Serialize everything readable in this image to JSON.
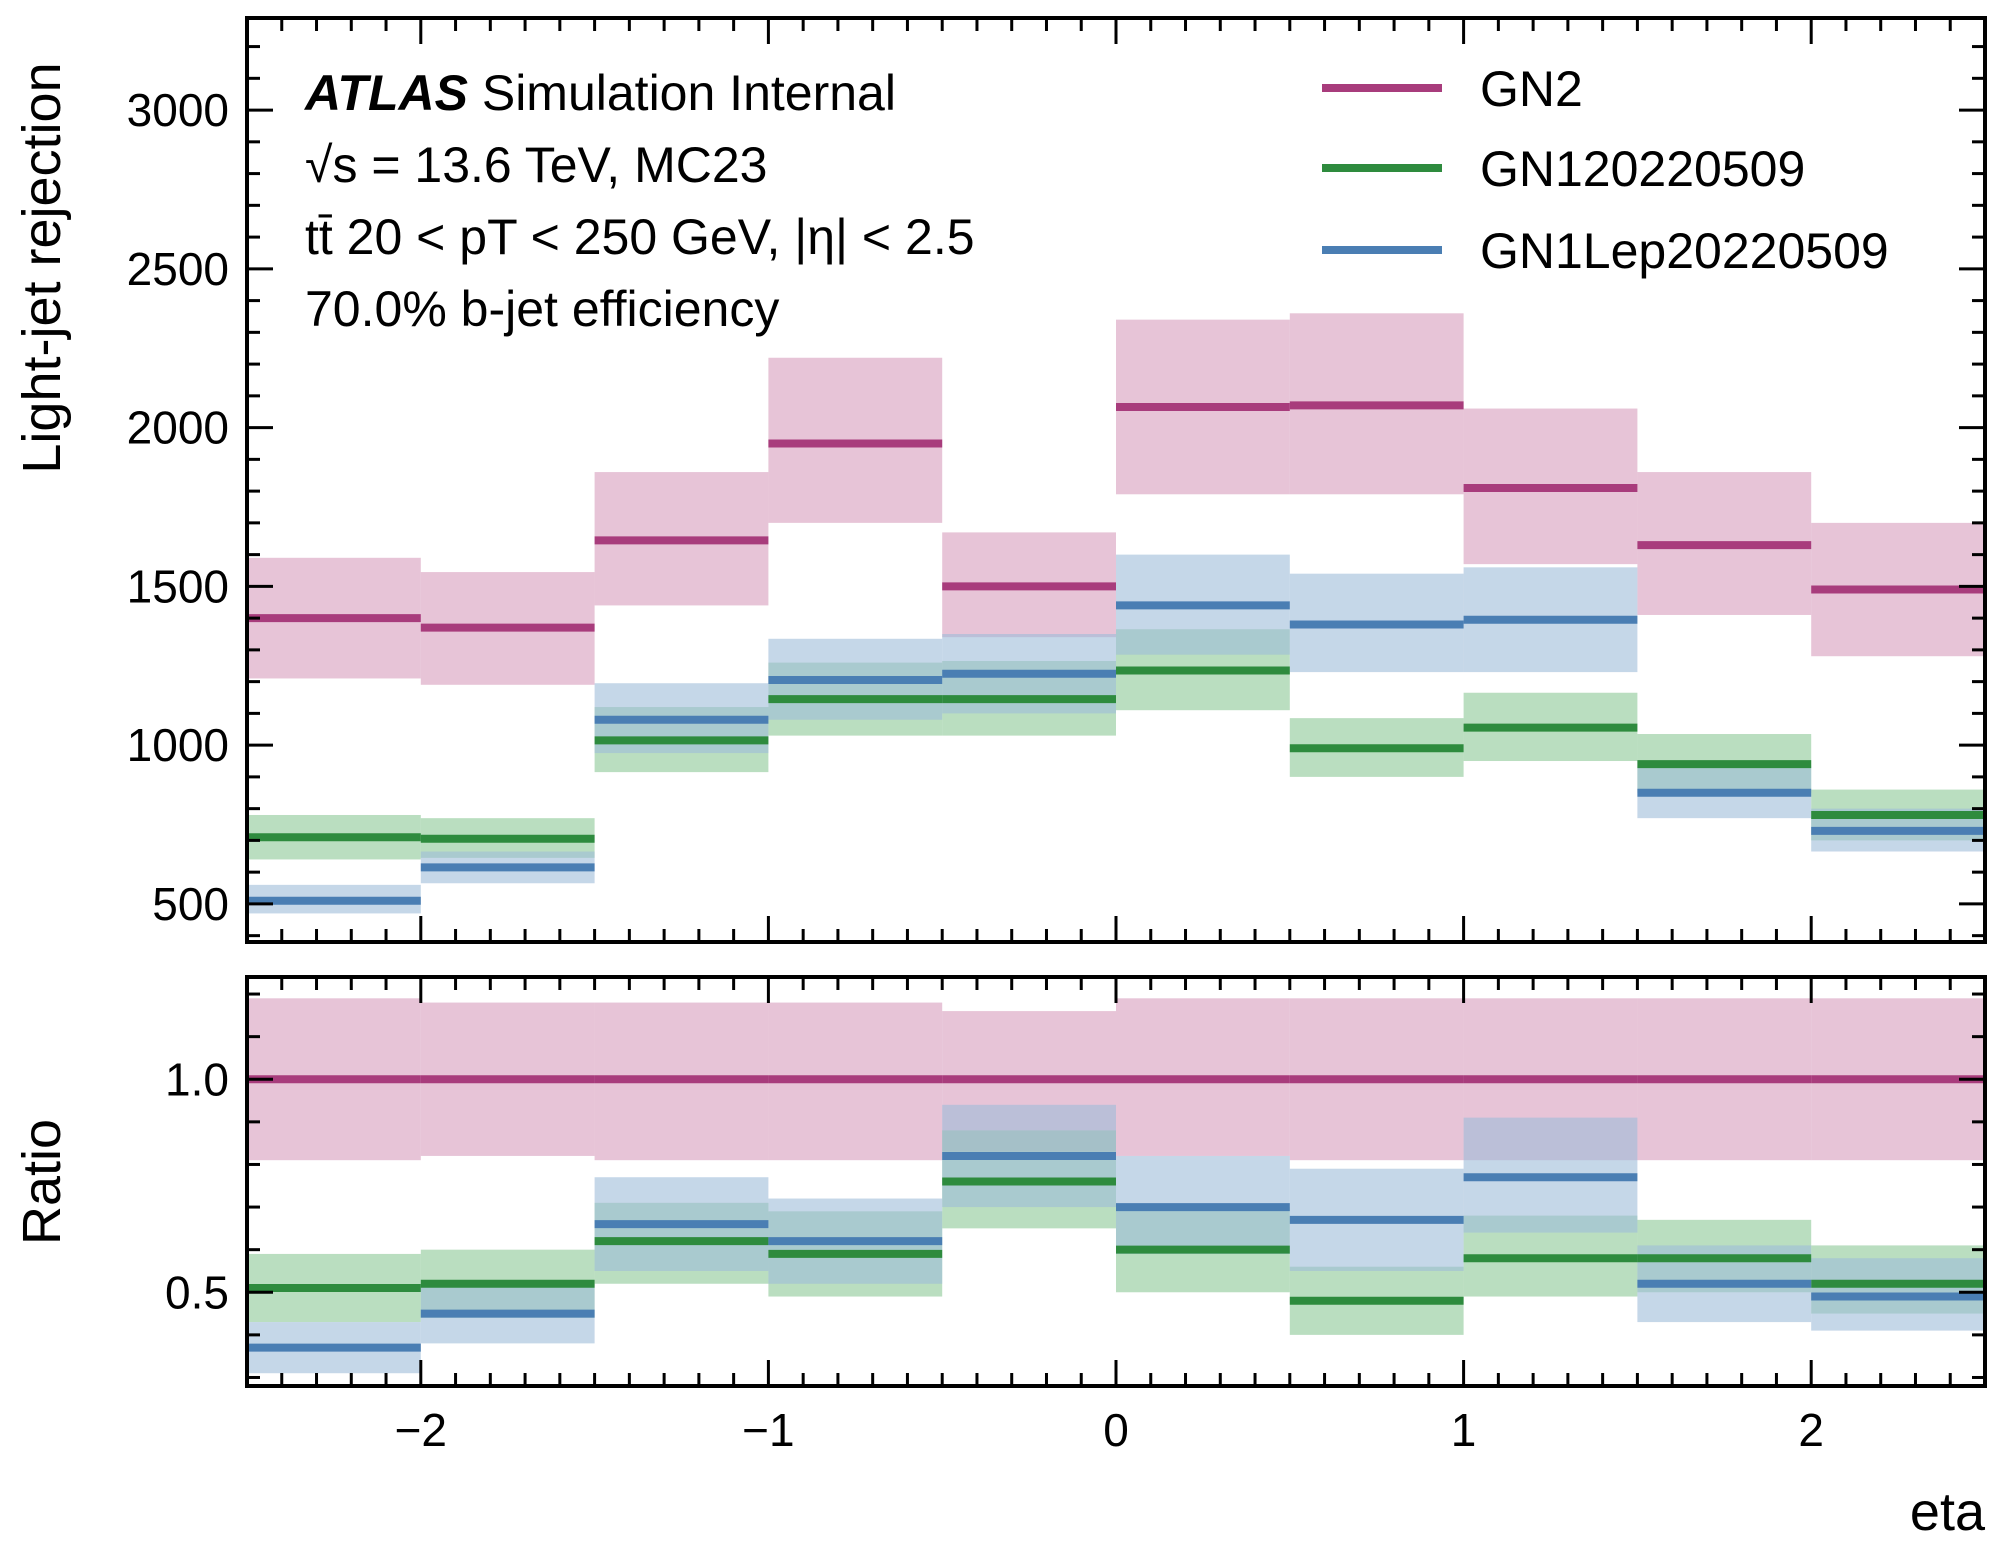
{
  "chart_data": [
    {
      "type": "step",
      "panel": "main",
      "ylabel": "Light-jet rejection",
      "xlim": [
        -2.5,
        2.5
      ],
      "ylim": [
        380,
        3290
      ],
      "yticks": [
        500,
        1000,
        1500,
        2000,
        2500,
        3000
      ],
      "bin_edges": [
        -2.5,
        -2.0,
        -1.5,
        -1.0,
        -0.5,
        0.0,
        0.5,
        1.0,
        1.5,
        2.0,
        2.5
      ],
      "series": [
        {
          "name": "GN2",
          "color": "#a83c7c",
          "band_color": "#d79cbd",
          "values": [
            1400,
            1370,
            1645,
            1950,
            1500,
            2065,
            2070,
            1810,
            1630,
            1490
          ],
          "band_low": [
            1210,
            1190,
            1440,
            1700,
            1340,
            1790,
            1790,
            1570,
            1410,
            1280
          ],
          "band_high": [
            1590,
            1545,
            1860,
            2220,
            1670,
            2340,
            2360,
            2060,
            1860,
            1700
          ]
        },
        {
          "name": "GN120220509",
          "color": "#2e8b3e",
          "band_color": "#8cc896",
          "values": [
            710,
            705,
            1015,
            1145,
            1145,
            1235,
            990,
            1055,
            940,
            780
          ],
          "band_low": [
            640,
            645,
            915,
            1030,
            1030,
            1110,
            900,
            950,
            850,
            700
          ],
          "band_high": [
            780,
            770,
            1120,
            1260,
            1265,
            1365,
            1085,
            1165,
            1035,
            860
          ]
        },
        {
          "name": "GN1Lep20220509",
          "color": "#4a7eb3",
          "band_color": "#9fbcd9",
          "values": [
            510,
            615,
            1080,
            1205,
            1225,
            1440,
            1380,
            1395,
            850,
            730
          ],
          "band_low": [
            470,
            565,
            975,
            1080,
            1100,
            1285,
            1230,
            1230,
            770,
            665
          ],
          "band_high": [
            560,
            665,
            1195,
            1335,
            1350,
            1600,
            1540,
            1560,
            935,
            800
          ]
        }
      ],
      "annotations": {
        "line1_bold": "ATLAS",
        "line1_rest": " Simulation Internal",
        "line2": "√s = 13.6 TeV, MC23",
        "line3": "tt̄ 20 < pT < 250 GeV, |η| < 2.5",
        "line4": "70.0% b-jet efficiency"
      },
      "legend_placement": "top-right"
    },
    {
      "type": "step",
      "panel": "ratio",
      "xlabel": "eta",
      "ylabel": "Ratio",
      "xlim": [
        -2.5,
        2.5
      ],
      "ylim": [
        0.28,
        1.24
      ],
      "yticks": [
        0.5,
        1.0
      ],
      "xticks": [
        -2,
        -1,
        0,
        1,
        2
      ],
      "bin_edges": [
        -2.5,
        -2.0,
        -1.5,
        -1.0,
        -0.5,
        0.0,
        0.5,
        1.0,
        1.5,
        2.0,
        2.5
      ],
      "series": [
        {
          "name": "GN2",
          "color": "#a83c7c",
          "band_color": "#d79cbd",
          "values": [
            1.0,
            1.0,
            1.0,
            1.0,
            1.0,
            1.0,
            1.0,
            1.0,
            1.0,
            1.0
          ],
          "band_low": [
            0.81,
            0.82,
            0.81,
            0.81,
            0.83,
            0.82,
            0.81,
            0.81,
            0.81,
            0.81
          ],
          "band_high": [
            1.19,
            1.18,
            1.18,
            1.18,
            1.16,
            1.19,
            1.19,
            1.19,
            1.19,
            1.19
          ]
        },
        {
          "name": "GN120220509",
          "color": "#2e8b3e",
          "band_color": "#8cc896",
          "values": [
            0.51,
            0.52,
            0.62,
            0.59,
            0.76,
            0.6,
            0.48,
            0.58,
            0.58,
            0.52
          ],
          "band_low": [
            0.43,
            0.44,
            0.52,
            0.49,
            0.65,
            0.5,
            0.4,
            0.49,
            0.5,
            0.45
          ],
          "band_high": [
            0.59,
            0.6,
            0.71,
            0.69,
            0.88,
            0.7,
            0.56,
            0.68,
            0.67,
            0.61
          ]
        },
        {
          "name": "GN1Lep20220509",
          "color": "#4a7eb3",
          "band_color": "#9fbcd9",
          "values": [
            0.37,
            0.45,
            0.66,
            0.62,
            0.82,
            0.7,
            0.67,
            0.77,
            0.52,
            0.49
          ],
          "band_low": [
            0.31,
            0.38,
            0.55,
            0.52,
            0.7,
            0.59,
            0.55,
            0.64,
            0.43,
            0.41
          ],
          "band_high": [
            0.43,
            0.52,
            0.77,
            0.72,
            0.94,
            0.82,
            0.79,
            0.91,
            0.61,
            0.58
          ]
        }
      ]
    }
  ]
}
